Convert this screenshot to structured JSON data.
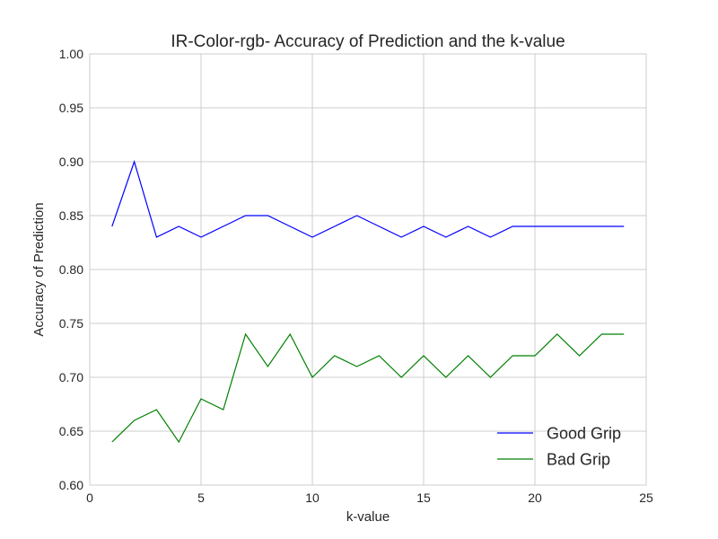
{
  "chart_data": {
    "type": "line",
    "title": "IR-Color-rgb- Accuracy of Prediction and the k-value",
    "xlabel": "k-value",
    "ylabel": "Accuracy of Prediction",
    "xlim": [
      0,
      25
    ],
    "ylim": [
      0.6,
      1.0
    ],
    "xticks": [
      0,
      5,
      10,
      15,
      20,
      25
    ],
    "xtick_labels": [
      "0",
      "5",
      "10",
      "15",
      "20",
      "25"
    ],
    "yticks": [
      0.6,
      0.65,
      0.7,
      0.75,
      0.8,
      0.85,
      0.9,
      0.95,
      1.0
    ],
    "ytick_labels": [
      "0.60",
      "0.65",
      "0.70",
      "0.75",
      "0.80",
      "0.85",
      "0.90",
      "0.95",
      "1.00"
    ],
    "grid": true,
    "legend_position": "lower-right",
    "x": [
      1,
      2,
      3,
      4,
      5,
      6,
      7,
      8,
      9,
      10,
      11,
      12,
      13,
      14,
      15,
      16,
      17,
      18,
      19,
      20,
      21,
      22,
      23,
      24
    ],
    "series": [
      {
        "name": "Good Grip",
        "color": "#0000ff",
        "values": [
          0.84,
          0.9,
          0.83,
          0.84,
          0.83,
          0.84,
          0.85,
          0.85,
          0.84,
          0.83,
          0.84,
          0.85,
          0.84,
          0.83,
          0.84,
          0.83,
          0.84,
          0.83,
          0.84,
          0.84,
          0.84,
          0.84,
          0.84,
          0.84
        ]
      },
      {
        "name": "Bad Grip",
        "color": "#008000",
        "values": [
          0.64,
          0.66,
          0.67,
          0.64,
          0.68,
          0.67,
          0.74,
          0.71,
          0.74,
          0.7,
          0.72,
          0.71,
          0.72,
          0.7,
          0.72,
          0.7,
          0.72,
          0.7,
          0.72,
          0.72,
          0.74,
          0.72,
          0.74,
          0.74
        ]
      }
    ]
  }
}
